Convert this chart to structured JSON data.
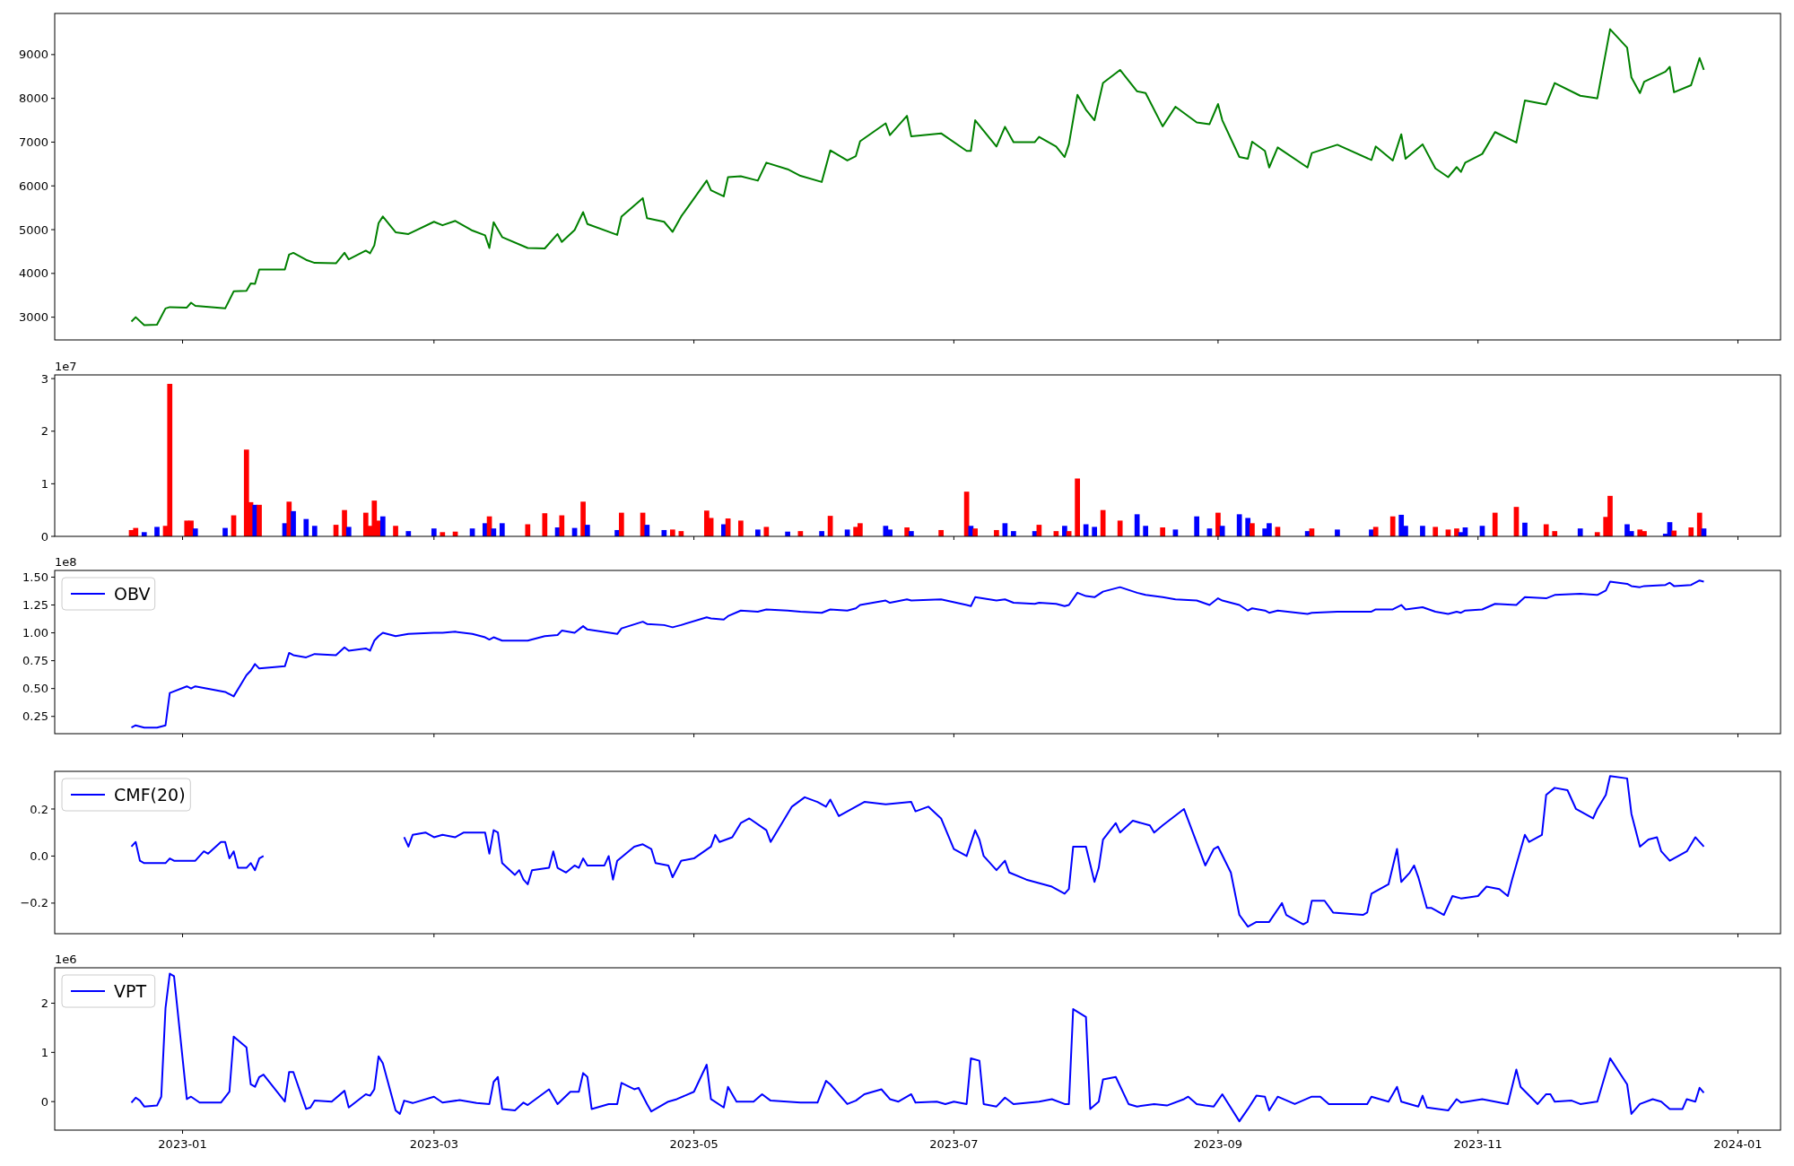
{
  "chart_data": [
    {
      "type": "line",
      "xlim": [
        "2022-12-02",
        "2024-01-11"
      ],
      "ylim": [
        2480,
        9940
      ],
      "yticks": [
        3000,
        4000,
        5000,
        6000,
        7000,
        8000,
        9000
      ],
      "xticks": [
        {
          "value": "2023-01-01",
          "label": null
        },
        {
          "value": "2023-03-01",
          "label": null
        },
        {
          "value": "2023-05-01",
          "label": null
        },
        {
          "value": "2023-07-01",
          "label": null
        },
        {
          "value": "2023-09-01",
          "label": null
        },
        {
          "value": "2023-11-01",
          "label": null
        },
        {
          "value": "2024-01-01",
          "label": null
        }
      ],
      "tick_labels": "y",
      "x": [
        "2022-12-20",
        "2022-12-21",
        "2022-12-23",
        "2022-12-26",
        "2022-12-28",
        "2022-12-29",
        "2023-01-02",
        "2023-01-03",
        "2023-01-04",
        "2023-01-11",
        "2023-01-13",
        "2023-01-16",
        "2023-01-17",
        "2023-01-18",
        "2023-01-19",
        "2023-01-25",
        "2023-01-26",
        "2023-01-27",
        "2023-01-30",
        "2023-02-01",
        "2023-02-06",
        "2023-02-08",
        "2023-02-09",
        "2023-02-13",
        "2023-02-14",
        "2023-02-15",
        "2023-02-16",
        "2023-02-17",
        "2023-02-20",
        "2023-02-23",
        "2023-03-01",
        "2023-03-03",
        "2023-03-06",
        "2023-03-10",
        "2023-03-13",
        "2023-03-14",
        "2023-03-15",
        "2023-03-17",
        "2023-03-23",
        "2023-03-27",
        "2023-03-30",
        "2023-03-31",
        "2023-04-03",
        "2023-04-05",
        "2023-04-06",
        "2023-04-13",
        "2023-04-14",
        "2023-04-19",
        "2023-04-20",
        "2023-04-24",
        "2023-04-26",
        "2023-04-28",
        "2023-05-04",
        "2023-05-05",
        "2023-05-08",
        "2023-05-09",
        "2023-05-12",
        "2023-05-16",
        "2023-05-18",
        "2023-05-23",
        "2023-05-26",
        "2023-05-31",
        "2023-06-02",
        "2023-06-06",
        "2023-06-08",
        "2023-06-09",
        "2023-06-15",
        "2023-06-16",
        "2023-06-20",
        "2023-06-21",
        "2023-06-28",
        "2023-07-04",
        "2023-07-05",
        "2023-07-06",
        "2023-07-11",
        "2023-07-13",
        "2023-07-15",
        "2023-07-20",
        "2023-07-21",
        "2023-07-25",
        "2023-07-27",
        "2023-07-28",
        "2023-07-30",
        "2023-08-01",
        "2023-08-03",
        "2023-08-05",
        "2023-08-09",
        "2023-08-13",
        "2023-08-15",
        "2023-08-19",
        "2023-08-22",
        "2023-08-27",
        "2023-08-30",
        "2023-09-01",
        "2023-09-02",
        "2023-09-06",
        "2023-09-08",
        "2023-09-09",
        "2023-09-12",
        "2023-09-13",
        "2023-09-15",
        "2023-09-22",
        "2023-09-23",
        "2023-09-29",
        "2023-10-07",
        "2023-10-08",
        "2023-10-12",
        "2023-10-14",
        "2023-10-15",
        "2023-10-19",
        "2023-10-22",
        "2023-10-25",
        "2023-10-27",
        "2023-10-28",
        "2023-10-29",
        "2023-11-02",
        "2023-11-05",
        "2023-11-10",
        "2023-11-12",
        "2023-11-17",
        "2023-11-19",
        "2023-11-25",
        "2023-11-29",
        "2023-12-01",
        "2023-12-02",
        "2023-12-06",
        "2023-12-07",
        "2023-12-09",
        "2023-12-10",
        "2023-12-15",
        "2023-12-16",
        "2023-12-17",
        "2023-12-21",
        "2023-12-23",
        "2023-12-24"
      ],
      "series": [
        {
          "color": "#008000",
          "values": [
            2900,
            3000,
            2820,
            2830,
            3200,
            3230,
            3220,
            3330,
            3260,
            3200,
            3590,
            3600,
            3770,
            3760,
            4090,
            4090,
            4430,
            4470,
            4310,
            4240,
            4230,
            4470,
            4320,
            4520,
            4460,
            4640,
            5150,
            5300,
            4940,
            4900,
            5180,
            5100,
            5200,
            4980,
            4870,
            4580,
            5170,
            4830,
            4580,
            4570,
            4900,
            4720,
            4990,
            5400,
            5130,
            4880,
            5300,
            5720,
            5260,
            5180,
            4950,
            5300,
            6120,
            5900,
            5760,
            6200,
            6220,
            6120,
            6530,
            6380,
            6230,
            6090,
            6810,
            6580,
            6680,
            7020,
            7430,
            7160,
            7600,
            7130,
            7200,
            6800,
            6800,
            7500,
            6900,
            7350,
            7000,
            7000,
            7120,
            6900,
            6660,
            6950,
            8080,
            7740,
            7500,
            8350,
            8650,
            8160,
            8120,
            7360,
            7810,
            7450,
            7410,
            7870,
            7500,
            6660,
            6620,
            7010,
            6800,
            6420,
            6880,
            6420,
            6750,
            6940,
            6590,
            6900,
            6580,
            7180,
            6620,
            6950,
            6400,
            6200,
            6430,
            6320,
            6530,
            6730,
            7230,
            6990,
            7950,
            7860,
            8350,
            8060,
            8000,
            9050,
            9580,
            9160,
            8480,
            8120,
            8380,
            8610,
            8720,
            8140,
            8300,
            8920,
            8650
          ]
        }
      ]
    },
    {
      "type": "bar",
      "xlim": [
        "2022-12-02",
        "2024-01-11"
      ],
      "ylim": [
        0,
        3.07
      ],
      "yticks": [
        0,
        1,
        2,
        3
      ],
      "xticks": [
        {
          "value": "2023-01-01",
          "label": null
        },
        {
          "value": "2023-03-01",
          "label": null
        },
        {
          "value": "2023-05-01",
          "label": null
        },
        {
          "value": "2023-07-01",
          "label": null
        },
        {
          "value": "2023-09-01",
          "label": null
        },
        {
          "value": "2023-11-01",
          "label": null
        },
        {
          "value": "2024-01-01",
          "label": null
        }
      ],
      "tick_labels": "y",
      "annotations": [
        "1e7"
      ],
      "x": [
        "2022-12-20",
        "2022-12-21",
        "2022-12-23",
        "2022-12-26",
        "2022-12-28",
        "2022-12-29",
        "2023-01-02",
        "2023-01-03",
        "2023-01-04",
        "2023-01-11",
        "2023-01-13",
        "2023-01-16",
        "2023-01-17",
        "2023-01-18",
        "2023-01-19",
        "2023-01-25",
        "2023-01-26",
        "2023-01-27",
        "2023-01-30",
        "2023-02-01",
        "2023-02-06",
        "2023-02-08",
        "2023-02-09",
        "2023-02-13",
        "2023-02-14",
        "2023-02-15",
        "2023-02-16",
        "2023-02-17",
        "2023-02-20",
        "2023-02-23",
        "2023-03-01",
        "2023-03-03",
        "2023-03-06",
        "2023-03-10",
        "2023-03-13",
        "2023-03-14",
        "2023-03-15",
        "2023-03-17",
        "2023-03-23",
        "2023-03-27",
        "2023-03-30",
        "2023-03-31",
        "2023-04-03",
        "2023-04-05",
        "2023-04-06",
        "2023-04-13",
        "2023-04-14",
        "2023-04-19",
        "2023-04-20",
        "2023-04-24",
        "2023-04-26",
        "2023-04-28",
        "2023-05-04",
        "2023-05-05",
        "2023-05-08",
        "2023-05-09",
        "2023-05-12",
        "2023-05-16",
        "2023-05-18",
        "2023-05-23",
        "2023-05-26",
        "2023-05-31",
        "2023-06-02",
        "2023-06-06",
        "2023-06-08",
        "2023-06-09",
        "2023-06-15",
        "2023-06-16",
        "2023-06-20",
        "2023-06-21",
        "2023-06-28",
        "2023-07-04",
        "2023-07-05",
        "2023-07-06",
        "2023-07-11",
        "2023-07-13",
        "2023-07-15",
        "2023-07-20",
        "2023-07-21",
        "2023-07-25",
        "2023-07-27",
        "2023-07-28",
        "2023-07-30",
        "2023-08-01",
        "2023-08-03",
        "2023-08-05",
        "2023-08-09",
        "2023-08-13",
        "2023-08-15",
        "2023-08-19",
        "2023-08-22",
        "2023-08-27",
        "2023-08-30",
        "2023-09-01",
        "2023-09-02",
        "2023-09-06",
        "2023-09-08",
        "2023-09-09",
        "2023-09-12",
        "2023-09-13",
        "2023-09-15",
        "2023-09-22",
        "2023-09-23",
        "2023-09-29",
        "2023-10-07",
        "2023-10-08",
        "2023-10-12",
        "2023-10-14",
        "2023-10-15",
        "2023-10-19",
        "2023-10-22",
        "2023-10-25",
        "2023-10-27",
        "2023-10-28",
        "2023-10-29",
        "2023-11-02",
        "2023-11-05",
        "2023-11-10",
        "2023-11-12",
        "2023-11-17",
        "2023-11-19",
        "2023-11-25",
        "2023-11-29",
        "2023-12-01",
        "2023-12-02",
        "2023-12-06",
        "2023-12-07",
        "2023-12-09",
        "2023-12-10",
        "2023-12-15",
        "2023-12-16",
        "2023-12-17",
        "2023-12-21",
        "2023-12-23",
        "2023-12-24"
      ],
      "values": [
        0.12,
        0.16,
        0.08,
        0.18,
        0.2,
        2.9,
        0.3,
        0.3,
        0.15,
        0.16,
        0.4,
        1.65,
        0.65,
        0.6,
        0.6,
        0.25,
        0.66,
        0.48,
        0.33,
        0.2,
        0.22,
        0.5,
        0.18,
        0.45,
        0.2,
        0.68,
        0.3,
        0.38,
        0.2,
        0.1,
        0.15,
        0.08,
        0.09,
        0.15,
        0.25,
        0.38,
        0.15,
        0.25,
        0.23,
        0.44,
        0.17,
        0.4,
        0.16,
        0.66,
        0.22,
        0.12,
        0.45,
        0.45,
        0.22,
        0.12,
        0.13,
        0.1,
        0.49,
        0.35,
        0.23,
        0.34,
        0.3,
        0.13,
        0.18,
        0.09,
        0.1,
        0.1,
        0.39,
        0.13,
        0.18,
        0.25,
        0.2,
        0.13,
        0.17,
        0.1,
        0.12,
        0.85,
        0.2,
        0.15,
        0.12,
        0.25,
        0.1,
        0.1,
        0.22,
        0.1,
        0.2,
        0.1,
        1.1,
        0.23,
        0.18,
        0.5,
        0.3,
        0.42,
        0.2,
        0.17,
        0.13,
        0.38,
        0.15,
        0.45,
        0.2,
        0.42,
        0.35,
        0.25,
        0.15,
        0.25,
        0.18,
        0.1,
        0.15,
        0.13,
        0.13,
        0.18,
        0.38,
        0.41,
        0.2,
        0.2,
        0.18,
        0.13,
        0.15,
        0.08,
        0.17,
        0.2,
        0.45,
        0.56,
        0.26,
        0.23,
        0.1,
        0.15,
        0.08,
        0.37,
        0.77,
        0.23,
        0.1,
        0.13,
        0.1,
        0.05,
        0.27,
        0.11,
        0.17,
        0.45,
        0.15
      ],
      "colors": [
        "#ff0000",
        "#ff0000",
        "#0000ff",
        "#0000ff",
        "#ff0000",
        "#ff0000",
        "#ff0000",
        "#ff0000",
        "#0000ff",
        "#0000ff",
        "#ff0000",
        "#ff0000",
        "#ff0000",
        "#0000ff",
        "#ff0000",
        "#0000ff",
        "#ff0000",
        "#0000ff",
        "#0000ff",
        "#0000ff",
        "#ff0000",
        "#ff0000",
        "#0000ff",
        "#ff0000",
        "#ff0000",
        "#ff0000",
        "#ff0000",
        "#0000ff",
        "#ff0000",
        "#0000ff",
        "#0000ff",
        "#ff0000",
        "#ff0000",
        "#0000ff",
        "#0000ff",
        "#ff0000",
        "#0000ff",
        "#0000ff",
        "#ff0000",
        "#ff0000",
        "#0000ff",
        "#ff0000",
        "#0000ff",
        "#ff0000",
        "#0000ff",
        "#0000ff",
        "#ff0000",
        "#ff0000",
        "#0000ff",
        "#0000ff",
        "#ff0000",
        "#ff0000",
        "#ff0000",
        "#ff0000",
        "#0000ff",
        "#ff0000",
        "#ff0000",
        "#0000ff",
        "#ff0000",
        "#0000ff",
        "#ff0000",
        "#0000ff",
        "#ff0000",
        "#0000ff",
        "#ff0000",
        "#ff0000",
        "#0000ff",
        "#0000ff",
        "#ff0000",
        "#0000ff",
        "#ff0000",
        "#ff0000",
        "#0000ff",
        "#ff0000",
        "#ff0000",
        "#0000ff",
        "#0000ff",
        "#0000ff",
        "#ff0000",
        "#ff0000",
        "#0000ff",
        "#ff0000",
        "#ff0000",
        "#0000ff",
        "#0000ff",
        "#ff0000",
        "#ff0000",
        "#0000ff",
        "#0000ff",
        "#ff0000",
        "#0000ff",
        "#0000ff",
        "#0000ff",
        "#ff0000",
        "#0000ff",
        "#0000ff",
        "#0000ff",
        "#ff0000",
        "#0000ff",
        "#0000ff",
        "#ff0000",
        "#0000ff",
        "#ff0000",
        "#0000ff",
        "#0000ff",
        "#ff0000",
        "#ff0000",
        "#0000ff",
        "#0000ff",
        "#0000ff",
        "#ff0000",
        "#ff0000",
        "#ff0000",
        "#0000ff",
        "#0000ff",
        "#0000ff",
        "#ff0000",
        "#ff0000",
        "#0000ff",
        "#ff0000",
        "#ff0000",
        "#0000ff",
        "#ff0000",
        "#ff0000",
        "#ff0000",
        "#0000ff",
        "#0000ff",
        "#ff0000",
        "#ff0000",
        "#0000ff",
        "#0000ff",
        "#ff0000",
        "#ff0000",
        "#ff0000",
        "#0000ff"
      ]
    },
    {
      "type": "line",
      "xlim": [
        "2022-12-02",
        "2024-01-11"
      ],
      "ylim": [
        0.095,
        1.56
      ],
      "yticks": [
        {
          "value": 0.25,
          "label": "0.25"
        },
        {
          "value": 0.5,
          "label": "0.50"
        },
        {
          "value": 0.75,
          "label": "0.75"
        },
        {
          "value": 1,
          "label": "1.00"
        },
        {
          "value": 1.25,
          "label": "1.25"
        },
        {
          "value": 1.5,
          "label": "1.50"
        }
      ],
      "xticks": [
        {
          "value": "2023-01-01",
          "label": null
        },
        {
          "value": "2023-03-01",
          "label": null
        },
        {
          "value": "2023-05-01",
          "label": null
        },
        {
          "value": "2023-07-01",
          "label": null
        },
        {
          "value": "2023-09-01",
          "label": null
        },
        {
          "value": "2023-11-01",
          "label": null
        },
        {
          "value": "2024-01-01",
          "label": null
        }
      ],
      "tick_labels": "y",
      "annotations": [
        "1e8"
      ],
      "legend": "top left",
      "x": [
        "2022-12-20",
        "2022-12-21",
        "2022-12-23",
        "2022-12-26",
        "2022-12-28",
        "2022-12-29",
        "2023-01-02",
        "2023-01-03",
        "2023-01-04",
        "2023-01-11",
        "2023-01-13",
        "2023-01-16",
        "2023-01-17",
        "2023-01-18",
        "2023-01-19",
        "2023-01-25",
        "2023-01-26",
        "2023-01-27",
        "2023-01-30",
        "2023-02-01",
        "2023-02-06",
        "2023-02-08",
        "2023-02-09",
        "2023-02-13",
        "2023-02-14",
        "2023-02-15",
        "2023-02-16",
        "2023-02-17",
        "2023-02-20",
        "2023-02-23",
        "2023-03-01",
        "2023-03-03",
        "2023-03-06",
        "2023-03-10",
        "2023-03-13",
        "2023-03-14",
        "2023-03-15",
        "2023-03-17",
        "2023-03-23",
        "2023-03-27",
        "2023-03-30",
        "2023-03-31",
        "2023-04-03",
        "2023-04-05",
        "2023-04-06",
        "2023-04-13",
        "2023-04-14",
        "2023-04-19",
        "2023-04-20",
        "2023-04-24",
        "2023-04-26",
        "2023-04-28",
        "2023-05-04",
        "2023-05-05",
        "2023-05-08",
        "2023-05-09",
        "2023-05-12",
        "2023-05-16",
        "2023-05-18",
        "2023-05-23",
        "2023-05-26",
        "2023-05-31",
        "2023-06-02",
        "2023-06-06",
        "2023-06-08",
        "2023-06-09",
        "2023-06-15",
        "2023-06-16",
        "2023-06-20",
        "2023-06-21",
        "2023-06-28",
        "2023-07-04",
        "2023-07-05",
        "2023-07-06",
        "2023-07-11",
        "2023-07-13",
        "2023-07-15",
        "2023-07-20",
        "2023-07-21",
        "2023-07-25",
        "2023-07-27",
        "2023-07-28",
        "2023-07-30",
        "2023-08-01",
        "2023-08-03",
        "2023-08-05",
        "2023-08-09",
        "2023-08-13",
        "2023-08-15",
        "2023-08-19",
        "2023-08-22",
        "2023-08-27",
        "2023-08-30",
        "2023-09-01",
        "2023-09-02",
        "2023-09-06",
        "2023-09-08",
        "2023-09-09",
        "2023-09-12",
        "2023-09-13",
        "2023-09-15",
        "2023-09-22",
        "2023-09-23",
        "2023-09-29",
        "2023-10-07",
        "2023-10-08",
        "2023-10-12",
        "2023-10-14",
        "2023-10-15",
        "2023-10-19",
        "2023-10-22",
        "2023-10-25",
        "2023-10-27",
        "2023-10-28",
        "2023-10-29",
        "2023-11-02",
        "2023-11-05",
        "2023-11-10",
        "2023-11-12",
        "2023-11-17",
        "2023-11-19",
        "2023-11-25",
        "2023-11-29",
        "2023-12-01",
        "2023-12-02",
        "2023-12-06",
        "2023-12-07",
        "2023-12-09",
        "2023-12-10",
        "2023-12-15",
        "2023-12-16",
        "2023-12-17",
        "2023-12-21",
        "2023-12-23",
        "2023-12-24"
      ],
      "series": [
        {
          "name": "OBV",
          "color": "#0000ff",
          "values": [
            0.15,
            0.17,
            0.15,
            0.15,
            0.17,
            0.46,
            0.52,
            0.5,
            0.52,
            0.47,
            0.43,
            0.62,
            0.66,
            0.72,
            0.68,
            0.7,
            0.82,
            0.8,
            0.78,
            0.81,
            0.8,
            0.87,
            0.84,
            0.86,
            0.84,
            0.93,
            0.97,
            1.0,
            0.97,
            0.99,
            1.0,
            1.0,
            1.01,
            0.99,
            0.96,
            0.94,
            0.96,
            0.93,
            0.93,
            0.97,
            0.98,
            1.02,
            1.0,
            1.06,
            1.03,
            0.99,
            1.04,
            1.1,
            1.08,
            1.07,
            1.05,
            1.07,
            1.14,
            1.13,
            1.12,
            1.15,
            1.2,
            1.19,
            1.21,
            1.2,
            1.19,
            1.18,
            1.21,
            1.2,
            1.22,
            1.25,
            1.29,
            1.27,
            1.3,
            1.29,
            1.3,
            1.25,
            1.24,
            1.32,
            1.29,
            1.3,
            1.27,
            1.26,
            1.27,
            1.26,
            1.24,
            1.25,
            1.36,
            1.33,
            1.32,
            1.37,
            1.41,
            1.36,
            1.34,
            1.32,
            1.3,
            1.29,
            1.25,
            1.31,
            1.29,
            1.25,
            1.2,
            1.22,
            1.2,
            1.18,
            1.2,
            1.17,
            1.18,
            1.19,
            1.19,
            1.21,
            1.21,
            1.25,
            1.21,
            1.23,
            1.19,
            1.17,
            1.19,
            1.18,
            1.2,
            1.21,
            1.26,
            1.25,
            1.32,
            1.31,
            1.34,
            1.35,
            1.34,
            1.38,
            1.46,
            1.44,
            1.42,
            1.41,
            1.42,
            1.43,
            1.45,
            1.42,
            1.43,
            1.47,
            1.46
          ]
        }
      ]
    },
    {
      "type": "line",
      "xlim": [
        "2022-12-02",
        "2024-01-11"
      ],
      "ylim": [
        -0.33,
        0.36
      ],
      "yticks": [
        {
          "value": -0.2,
          "label": "−0.2"
        },
        {
          "value": 0,
          "label": "0.0"
        },
        {
          "value": 0.2,
          "label": "0.2"
        }
      ],
      "xticks": [
        {
          "value": "2023-01-01",
          "label": null
        },
        {
          "value": "2023-03-01",
          "label": null
        },
        {
          "value": "2023-05-01",
          "label": null
        },
        {
          "value": "2023-07-01",
          "label": null
        },
        {
          "value": "2023-09-01",
          "label": null
        },
        {
          "value": "2023-11-01",
          "label": null
        },
        {
          "value": "2024-01-01",
          "label": null
        }
      ],
      "tick_labels": "y",
      "legend": "top left",
      "series": [
        {
          "name": "CMF(20)",
          "color": "#0000ff",
          "x": [
            "2022-12-20",
            "2022-12-21",
            "2022-12-22",
            "2022-12-23",
            "2022-12-28",
            "2022-12-29",
            "2022-12-30",
            "2023-01-04",
            "2023-01-06",
            "2023-01-07",
            "2023-01-10",
            "2023-01-11",
            "2023-01-12",
            "2023-01-13",
            "2023-01-14",
            "2023-01-16",
            "2023-01-17",
            "2023-01-18",
            "2023-01-19",
            "2023-01-20",
            "2023-02-01",
            "2023-02-22",
            "2023-02-23",
            "2023-02-24",
            "2023-02-27",
            "2023-03-01",
            "2023-03-03",
            "2023-03-06",
            "2023-03-08",
            "2023-03-10",
            "2023-03-13",
            "2023-03-14",
            "2023-03-15",
            "2023-03-16",
            "2023-03-17",
            "2023-03-20",
            "2023-03-21",
            "2023-03-22",
            "2023-03-23",
            "2023-03-24",
            "2023-03-28",
            "2023-03-29",
            "2023-03-30",
            "2023-04-01",
            "2023-04-03",
            "2023-04-04",
            "2023-04-05",
            "2023-04-06",
            "2023-04-10",
            "2023-04-11",
            "2023-04-12",
            "2023-04-13",
            "2023-04-17",
            "2023-04-19",
            "2023-04-21",
            "2023-04-22",
            "2023-04-25",
            "2023-04-26",
            "2023-04-28",
            "2023-05-01",
            "2023-05-05",
            "2023-05-06",
            "2023-05-07",
            "2023-05-10",
            "2023-05-12",
            "2023-05-14",
            "2023-05-18",
            "2023-05-19",
            "2023-05-21",
            "2023-05-24",
            "2023-05-27",
            "2023-05-30",
            "2023-06-01",
            "2023-06-02",
            "2023-06-04",
            "2023-06-10",
            "2023-06-15",
            "2023-06-21",
            "2023-06-22",
            "2023-06-25",
            "2023-06-28",
            "2023-07-01",
            "2023-07-04",
            "2023-07-06",
            "2023-07-07",
            "2023-07-08",
            "2023-07-11",
            "2023-07-13",
            "2023-07-14",
            "2023-07-18",
            "2023-07-24",
            "2023-07-27",
            "2023-07-28",
            "2023-07-29",
            "2023-08-01",
            "2023-08-03",
            "2023-08-04",
            "2023-08-05",
            "2023-08-08",
            "2023-08-09",
            "2023-08-12",
            "2023-08-16",
            "2023-08-17",
            "2023-08-19",
            "2023-08-24",
            "2023-08-29",
            "2023-08-31",
            "2023-09-01",
            "2023-09-04",
            "2023-09-06",
            "2023-09-08",
            "2023-09-10",
            "2023-09-13",
            "2023-09-16",
            "2023-09-17",
            "2023-09-19",
            "2023-09-21",
            "2023-09-22",
            "2023-09-23",
            "2023-09-26",
            "2023-09-28",
            "2023-10-05",
            "2023-10-06",
            "2023-10-07",
            "2023-10-11",
            "2023-10-13",
            "2023-10-14",
            "2023-10-16",
            "2023-10-17",
            "2023-10-18",
            "2023-10-20",
            "2023-10-21",
            "2023-10-24",
            "2023-10-26",
            "2023-10-28",
            "2023-11-01",
            "2023-11-03",
            "2023-11-06",
            "2023-11-08",
            "2023-11-09",
            "2023-11-12",
            "2023-11-13",
            "2023-11-16",
            "2023-11-17",
            "2023-11-19",
            "2023-11-22",
            "2023-11-24",
            "2023-11-28",
            "2023-11-29",
            "2023-12-01",
            "2023-12-02",
            "2023-12-06",
            "2023-12-07",
            "2023-12-09",
            "2023-12-11",
            "2023-12-13",
            "2023-12-14",
            "2023-12-16",
            "2023-12-18",
            "2023-12-20",
            "2023-12-22",
            "2023-12-24"
          ],
          "values": [
            0.04,
            0.06,
            -0.02,
            -0.03,
            -0.03,
            -0.01,
            -0.02,
            -0.02,
            0.02,
            0.01,
            0.06,
            0.06,
            -0.01,
            0.02,
            -0.05,
            -0.05,
            -0.03,
            -0.06,
            -0.01,
            0.0,
            null,
            0.08,
            0.04,
            0.09,
            0.1,
            0.08,
            0.09,
            0.08,
            0.1,
            0.1,
            0.1,
            0.01,
            0.11,
            0.1,
            -0.03,
            -0.08,
            -0.06,
            -0.1,
            -0.12,
            -0.06,
            -0.05,
            0.02,
            -0.05,
            -0.07,
            -0.04,
            -0.05,
            -0.01,
            -0.04,
            -0.04,
            0.0,
            -0.1,
            -0.02,
            0.04,
            0.05,
            0.03,
            -0.03,
            -0.04,
            -0.09,
            -0.02,
            -0.01,
            0.04,
            0.09,
            0.06,
            0.08,
            0.14,
            0.16,
            0.11,
            0.06,
            0.12,
            0.21,
            0.25,
            0.23,
            0.21,
            0.24,
            0.17,
            0.23,
            0.22,
            0.23,
            0.19,
            0.21,
            0.16,
            0.03,
            0.0,
            0.11,
            0.07,
            0.0,
            -0.06,
            -0.02,
            -0.07,
            -0.1,
            -0.13,
            -0.16,
            -0.14,
            0.04,
            0.04,
            -0.11,
            -0.05,
            0.07,
            0.14,
            0.1,
            0.15,
            0.13,
            0.1,
            0.13,
            0.2,
            -0.04,
            0.03,
            0.04,
            -0.07,
            -0.25,
            -0.3,
            -0.28,
            -0.28,
            -0.2,
            -0.25,
            -0.27,
            -0.29,
            -0.28,
            -0.19,
            -0.19,
            -0.24,
            -0.25,
            -0.24,
            -0.16,
            -0.12,
            0.03,
            -0.11,
            -0.07,
            -0.04,
            -0.09,
            -0.22,
            -0.22,
            -0.25,
            -0.17,
            -0.18,
            -0.17,
            -0.13,
            -0.14,
            -0.17,
            -0.1,
            0.09,
            0.06,
            0.09,
            0.26,
            0.29,
            0.28,
            0.2,
            0.16,
            0.2,
            0.26,
            0.34,
            0.33,
            0.18,
            0.04,
            0.07,
            0.08,
            0.02,
            -0.02,
            0.0,
            0.02,
            0.08,
            0.04
          ]
        }
      ]
    },
    {
      "type": "line",
      "xlim": [
        "2022-12-02",
        "2024-01-11"
      ],
      "ylim": [
        -0.58,
        2.72
      ],
      "yticks": [
        0,
        1,
        2
      ],
      "xticks": [
        {
          "value": "2023-01-01",
          "label": "2023-01"
        },
        {
          "value": "2023-03-01",
          "label": "2023-03"
        },
        {
          "value": "2023-05-01",
          "label": "2023-05"
        },
        {
          "value": "2023-07-01",
          "label": "2023-07"
        },
        {
          "value": "2023-09-01",
          "label": "2023-09"
        },
        {
          "value": "2023-11-01",
          "label": "2023-11"
        },
        {
          "value": "2024-01-01",
          "label": "2024-01"
        }
      ],
      "annotations": [
        "1e6"
      ],
      "legend": "top left",
      "series": [
        {
          "name": "VPT",
          "color": "#0000ff",
          "x": [
            "2022-12-20",
            "2022-12-21",
            "2022-12-22",
            "2022-12-23",
            "2022-12-26",
            "2022-12-27",
            "2022-12-28",
            "2022-12-29",
            "2022-12-30",
            "2023-01-02",
            "2023-01-03",
            "2023-01-05",
            "2023-01-10",
            "2023-01-12",
            "2023-01-13",
            "2023-01-16",
            "2023-01-17",
            "2023-01-18",
            "2023-01-19",
            "2023-01-20",
            "2023-01-25",
            "2023-01-26",
            "2023-01-27",
            "2023-01-30",
            "2023-01-31",
            "2023-02-01",
            "2023-02-05",
            "2023-02-08",
            "2023-02-09",
            "2023-02-13",
            "2023-02-14",
            "2023-02-15",
            "2023-02-16",
            "2023-02-17",
            "2023-02-20",
            "2023-02-21",
            "2023-02-22",
            "2023-02-24",
            "2023-03-01",
            "2023-03-03",
            "2023-03-07",
            "2023-03-11",
            "2023-03-14",
            "2023-03-15",
            "2023-03-16",
            "2023-03-17",
            "2023-03-20",
            "2023-03-22",
            "2023-03-23",
            "2023-03-28",
            "2023-03-30",
            "2023-04-02",
            "2023-04-04",
            "2023-04-05",
            "2023-04-06",
            "2023-04-07",
            "2023-04-11",
            "2023-04-13",
            "2023-04-14",
            "2023-04-17",
            "2023-04-18",
            "2023-04-20",
            "2023-04-21",
            "2023-04-25",
            "2023-04-27",
            "2023-05-01",
            "2023-05-04",
            "2023-05-05",
            "2023-05-08",
            "2023-05-09",
            "2023-05-11",
            "2023-05-15",
            "2023-05-17",
            "2023-05-19",
            "2023-05-26",
            "2023-05-30",
            "2023-06-01",
            "2023-06-02",
            "2023-06-06",
            "2023-06-08",
            "2023-06-10",
            "2023-06-14",
            "2023-06-16",
            "2023-06-18",
            "2023-06-21",
            "2023-06-22",
            "2023-06-27",
            "2023-06-29",
            "2023-07-01",
            "2023-07-04",
            "2023-07-05",
            "2023-07-07",
            "2023-07-08",
            "2023-07-11",
            "2023-07-13",
            "2023-07-15",
            "2023-07-21",
            "2023-07-24",
            "2023-07-27",
            "2023-07-28",
            "2023-07-29",
            "2023-08-01",
            "2023-08-02",
            "2023-08-04",
            "2023-08-05",
            "2023-08-08",
            "2023-08-11",
            "2023-08-13",
            "2023-08-17",
            "2023-08-20",
            "2023-08-24",
            "2023-08-25",
            "2023-08-27",
            "2023-08-29",
            "2023-08-31",
            "2023-09-02",
            "2023-09-06",
            "2023-09-08",
            "2023-09-10",
            "2023-09-12",
            "2023-09-13",
            "2023-09-15",
            "2023-09-19",
            "2023-09-23",
            "2023-09-25",
            "2023-09-27",
            "2023-10-06",
            "2023-10-07",
            "2023-10-11",
            "2023-10-13",
            "2023-10-14",
            "2023-10-18",
            "2023-10-19",
            "2023-10-20",
            "2023-10-25",
            "2023-10-27",
            "2023-10-28",
            "2023-11-02",
            "2023-11-05",
            "2023-11-08",
            "2023-11-10",
            "2023-11-11",
            "2023-11-15",
            "2023-11-17",
            "2023-11-18",
            "2023-11-19",
            "2023-11-23",
            "2023-11-25",
            "2023-11-29",
            "2023-12-02",
            "2023-12-06",
            "2023-12-07",
            "2023-12-09",
            "2023-12-12",
            "2023-12-14",
            "2023-12-16",
            "2023-12-19",
            "2023-12-20",
            "2023-12-22",
            "2023-12-23",
            "2023-12-24"
          ],
          "values": [
            -0.02,
            0.08,
            0.02,
            -0.1,
            -0.08,
            0.1,
            1.9,
            2.6,
            2.55,
            0.05,
            0.1,
            -0.02,
            -0.02,
            0.2,
            1.32,
            1.1,
            0.35,
            0.3,
            0.5,
            0.55,
            0,
            0.6,
            0.6,
            -0.15,
            -0.12,
            0.02,
            0,
            0.22,
            -0.12,
            0.15,
            0.12,
            0.25,
            0.92,
            0.78,
            -0.18,
            -0.25,
            0.02,
            -0.03,
            0.1,
            -0.02,
            0.03,
            -0.03,
            -0.05,
            0.4,
            0.5,
            -0.15,
            -0.18,
            -0.02,
            -0.07,
            0.25,
            -0.05,
            0.2,
            0.2,
            0.58,
            0.5,
            -0.15,
            -0.05,
            -0.05,
            0.38,
            0.25,
            0.28,
            -0.05,
            -0.2,
            0,
            0.05,
            0.2,
            0.75,
            0.05,
            -0.12,
            0.3,
            0,
            0,
            0.15,
            0.02,
            -0.02,
            -0.02,
            0.42,
            0.35,
            -0.05,
            0.02,
            0.15,
            0.25,
            0.05,
            0,
            0.15,
            -0.02,
            0,
            -0.05,
            0,
            -0.05,
            0.88,
            0.83,
            -0.05,
            -0.1,
            0.08,
            -0.05,
            0,
            0.05,
            -0.05,
            -0.05,
            1.88,
            1.72,
            -0.15,
            0,
            0.45,
            0.5,
            -0.05,
            -0.1,
            -0.05,
            -0.08,
            0.05,
            0.1,
            -0.05,
            -0.08,
            -0.1,
            0.15,
            -0.4,
            -0.15,
            0.12,
            0.1,
            -0.18,
            0.1,
            -0.05,
            0.1,
            0.1,
            -0.05,
            -0.05,
            0.1,
            0,
            0.3,
            0,
            -0.1,
            0.12,
            -0.12,
            -0.18,
            0.05,
            -0.02,
            0.05,
            0,
            -0.05,
            0.65,
            0.3,
            -0.05,
            0.15,
            0.15,
            0,
            0.02,
            -0.05,
            0,
            0.88,
            0.35,
            -0.25,
            -0.05,
            0.05,
            0,
            -0.15,
            -0.15,
            0.05,
            0,
            0.28,
            0.18
          ]
        }
      ]
    }
  ]
}
